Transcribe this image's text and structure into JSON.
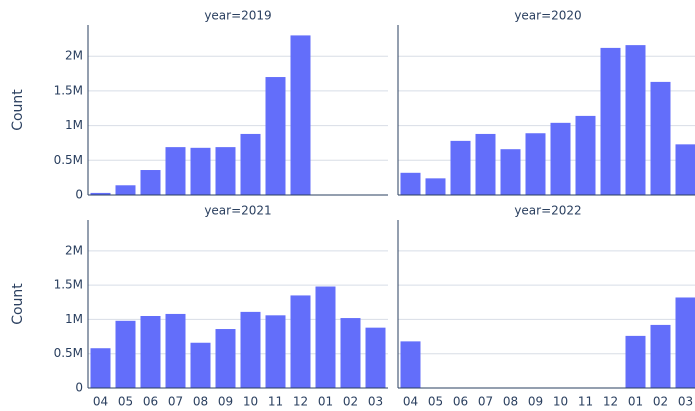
{
  "chart_data": [
    {
      "type": "bar",
      "title": "year=2019",
      "ylabel": "Count",
      "color": "#636efa",
      "categories": [
        "04",
        "05",
        "06",
        "07",
        "08",
        "09",
        "10",
        "11",
        "12",
        "01",
        "02",
        "03"
      ],
      "values": [
        30000,
        140000,
        360000,
        690000,
        680000,
        690000,
        880000,
        1700000,
        2300000,
        0,
        0,
        0
      ],
      "ylim": [
        0,
        2450000
      ],
      "yticks": [
        0,
        {
          "value": 500000,
          "label": "0.5M"
        },
        {
          "value": 1000000,
          "label": "1M"
        },
        {
          "value": 1500000,
          "label": "1.5M"
        },
        {
          "value": 2000000,
          "label": "2M"
        }
      ]
    },
    {
      "type": "bar",
      "title": "year=2020",
      "color": "#636efa",
      "categories": [
        "04",
        "05",
        "06",
        "07",
        "08",
        "09",
        "10",
        "11",
        "12",
        "01",
        "02",
        "03"
      ],
      "values": [
        320000,
        240000,
        780000,
        880000,
        660000,
        890000,
        1040000,
        1140000,
        2120000,
        2160000,
        1630000,
        730000
      ],
      "ylim": [
        0,
        2450000
      ],
      "yticks": [
        0,
        {
          "value": 500000,
          "label": "0.5M"
        },
        {
          "value": 1000000,
          "label": "1M"
        },
        {
          "value": 1500000,
          "label": "1.5M"
        },
        {
          "value": 2000000,
          "label": "2M"
        }
      ]
    },
    {
      "type": "bar",
      "title": "year=2021",
      "ylabel": "Count",
      "color": "#636efa",
      "categories": [
        "04",
        "05",
        "06",
        "07",
        "08",
        "09",
        "10",
        "11",
        "12",
        "01",
        "02",
        "03"
      ],
      "values": [
        580000,
        980000,
        1050000,
        1080000,
        660000,
        860000,
        1110000,
        1060000,
        1350000,
        1480000,
        1020000,
        880000
      ],
      "ylim": [
        0,
        2450000
      ],
      "yticks": [
        0,
        {
          "value": 500000,
          "label": "0.5M"
        },
        {
          "value": 1000000,
          "label": "1M"
        },
        {
          "value": 1500000,
          "label": "1.5M"
        },
        {
          "value": 2000000,
          "label": "2M"
        }
      ]
    },
    {
      "type": "bar",
      "title": "year=2022",
      "color": "#636efa",
      "categories": [
        "04",
        "05",
        "06",
        "07",
        "08",
        "09",
        "10",
        "11",
        "12",
        "01",
        "02",
        "03"
      ],
      "values": [
        680000,
        0,
        0,
        0,
        0,
        0,
        0,
        0,
        0,
        760000,
        920000,
        1320000
      ],
      "ylim": [
        0,
        2450000
      ],
      "yticks": [
        0,
        {
          "value": 500000,
          "label": "0.5M"
        },
        {
          "value": 1000000,
          "label": "1M"
        },
        {
          "value": 1500000,
          "label": "1.5M"
        },
        {
          "value": 2000000,
          "label": "2M"
        }
      ]
    }
  ]
}
